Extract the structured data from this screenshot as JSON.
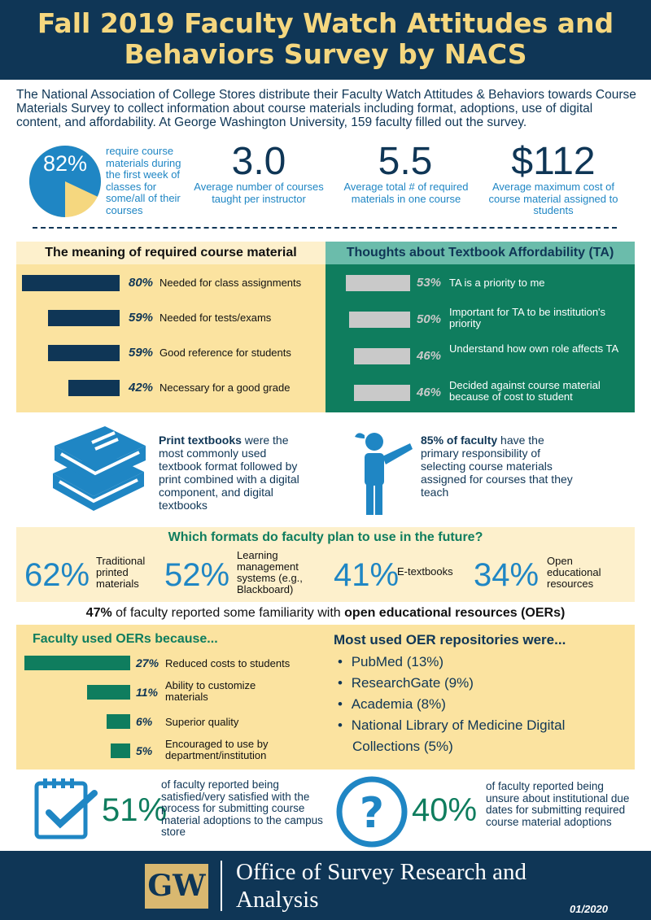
{
  "title": "Fall 2019 Faculty Watch Attitudes and Behaviors Survey by NACS",
  "intro": "The National Association of College Stores distribute their Faculty Watch Attitudes & Behaviors towards Course Materials Survey to collect information about course materials including format, adoptions, use of digital content, and affordability. At George Washington University, 159 faculty filled out the survey.",
  "stats": {
    "pie": {
      "label": "82%",
      "value": 82,
      "caption": "require course materials during the first week of classes for some/all of their courses"
    },
    "courses": {
      "value": "3.0",
      "caption": "Average number of courses taught per instructor"
    },
    "materials": {
      "value": "5.5",
      "caption": "Average total # of required materials in one course"
    },
    "cost": {
      "value": "$112",
      "caption": "Average maximum cost of course material assigned to students"
    }
  },
  "meaning": {
    "heading": "The meaning of required course material",
    "items": [
      {
        "pct": "80%",
        "value": 80,
        "label": "Needed for class assignments"
      },
      {
        "pct": "59%",
        "value": 59,
        "label": "Needed for tests/exams"
      },
      {
        "pct": "59%",
        "value": 59,
        "label": "Good reference for students"
      },
      {
        "pct": "42%",
        "value": 42,
        "label": "Necessary for a good grade"
      }
    ]
  },
  "affordability": {
    "heading": "Thoughts about Textbook Affordability (TA)",
    "items": [
      {
        "pct": "53%",
        "value": 53,
        "label": "TA is a priority to me"
      },
      {
        "pct": "50%",
        "value": 50,
        "label": "Important for TA to be institution's priority"
      },
      {
        "pct": "46%",
        "value": 46,
        "label": "Understand how own role affects TA"
      },
      {
        "pct": "46%",
        "value": 46,
        "label": "Decided against course material because of cost to student"
      }
    ]
  },
  "print": {
    "bold": "Print textbooks",
    "rest": " were the most commonly used textbook format followed by print combined with a digital component, and digital textbooks"
  },
  "faculty": {
    "bold": "85% of faculty",
    "rest": " have the primary responsibility of selecting course materials assigned for courses that they teach"
  },
  "formats": {
    "heading": "Which formats do faculty plan to use in the future?",
    "items": [
      {
        "pct": "62%",
        "label": "Traditional printed materials"
      },
      {
        "pct": "52%",
        "label": "Learning management systems (e.g., Blackboard)"
      },
      {
        "pct": "41%",
        "label": "E-textbooks"
      },
      {
        "pct": "34%",
        "label": "Open educational resources"
      }
    ]
  },
  "oer_line": {
    "pct": "47%",
    "middle": " of faculty reported some familiarity with ",
    "bold": "open educational resources (OERs)"
  },
  "oer_reasons": {
    "heading": "Faculty used OERs because...",
    "items": [
      {
        "pct": "27%",
        "value": 27,
        "label": "Reduced costs to students"
      },
      {
        "pct": "11%",
        "value": 11,
        "label": "Ability to customize materials"
      },
      {
        "pct": "6%",
        "value": 6,
        "label": "Superior quality"
      },
      {
        "pct": "5%",
        "value": 5,
        "label": "Encouraged to use by department/institution"
      }
    ]
  },
  "repos": {
    "heading": "Most used OER repositories were...",
    "items": [
      "PubMed (13%)",
      "ResearchGate (9%)",
      "Academia (8%)",
      "National Library of Medicine Digital Collections (5%)"
    ]
  },
  "satisfied": {
    "pct": "51%",
    "caption": "of faculty reported being satisfied/very satisfied with the process for submitting course material adoptions to the campus store"
  },
  "unsure": {
    "pct": "40%",
    "caption": "of faculty reported being unsure about institutional due dates for submitting required course material adoptions"
  },
  "footer": {
    "logo": "GW",
    "office": "Office of Survey Research and Analysis",
    "date": "01/2020"
  },
  "colors": {
    "navy": "#0f3656",
    "gold": "#f5d77f",
    "blue": "#1f86c4",
    "green": "#0f7d5e",
    "cream": "#fbe3a0"
  }
}
